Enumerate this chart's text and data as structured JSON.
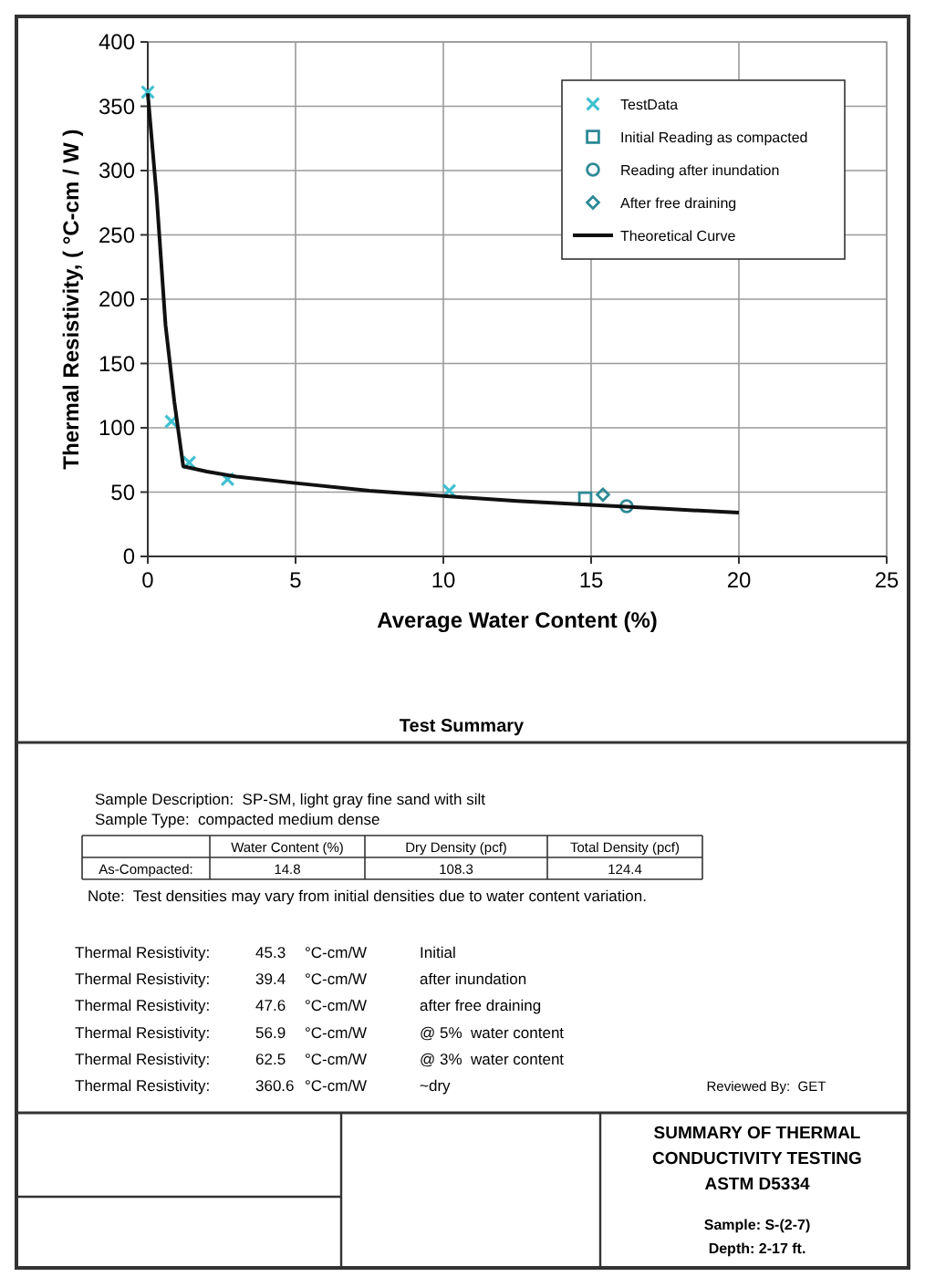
{
  "chart_data": [
    {
      "type": "scatter",
      "xlabel": "Average Water Content (%)",
      "ylabel": "Thermal Resistivity, ( °C-cm / W )",
      "xlim": [
        0,
        25
      ],
      "xticks": [
        0,
        5,
        10,
        15,
        20,
        25
      ],
      "ylim": [
        0,
        400
      ],
      "yticks": [
        0,
        50,
        100,
        150,
        200,
        250,
        300,
        350,
        400
      ],
      "grid": true,
      "legend": "top right",
      "series": [
        {
          "name": "TestData",
          "type": "scatter",
          "marker": "cross",
          "color": "#40c0d0",
          "x": [
            0,
            0.8,
            1.4,
            2.7,
            10.2
          ],
          "values": [
            361,
            105,
            73,
            60,
            51
          ]
        },
        {
          "name": "Initial Reading as compacted",
          "type": "scatter",
          "marker": "square",
          "color": "#2e8a96",
          "x": [
            14.8
          ],
          "values": [
            45
          ]
        },
        {
          "name": "Reading after inundation",
          "type": "scatter",
          "marker": "circle",
          "color": "#2e8a96",
          "x": [
            16.2
          ],
          "values": [
            39
          ]
        },
        {
          "name": "After free draining",
          "type": "scatter",
          "marker": "diamond",
          "color": "#2e8a96",
          "x": [
            15.4
          ],
          "values": [
            48
          ]
        },
        {
          "name": "Theoretical Curve",
          "type": "line",
          "marker": "none",
          "line_style": "solid",
          "color": "#111111",
          "x": [
            0,
            0.3,
            0.6,
            0.9,
            1.2,
            2,
            3,
            5,
            7.5,
            10,
            12.5,
            15,
            17.5,
            20
          ],
          "values": [
            360,
            280,
            180,
            120,
            70,
            66,
            62,
            57,
            51,
            47,
            43,
            40,
            37,
            34
          ]
        }
      ]
    },
    {
      "type": "other",
      "title": "Test Summary",
      "categories": [
        null,
        "Water Content (%)",
        "Dry Density (pcf)",
        "Total Density (pcf)"
      ],
      "y_categories": [
        "As-Compacted:"
      ],
      "cell_labels": [
        [
          "14.8",
          "108.3",
          "124.4"
        ]
      ],
      "annotations": [
        "Sample Description:  SP-SM, light gray fine sand with silt",
        "Sample Type:  compacted medium dense",
        "Note:  Test densities may vary from initial densities due to water content variation.",
        "Thermal Resistivity:  45.3  °C-cm/W  Initial",
        "Thermal Resistivity:  39.4  °C-cm/W  after inundation",
        "Thermal Resistivity:  47.6  °C-cm/W  after free draining",
        "Thermal Resistivity:  56.9  °C-cm/W  @ 5%  water content",
        "Thermal Resistivity:  62.5  °C-cm/W  @ 3%  water content",
        "Thermal Resistivity:  360.6  °C-cm/W  ~dry",
        "Reviewed By:  GET"
      ]
    },
    {
      "type": "other",
      "title": "SUMMARY OF THERMAL\nCONDUCTIVITY TESTING\nASTM D5334",
      "annotations": [
        "Sample: S-(2-7)",
        "Depth: 2-17 ft."
      ]
    }
  ]
}
